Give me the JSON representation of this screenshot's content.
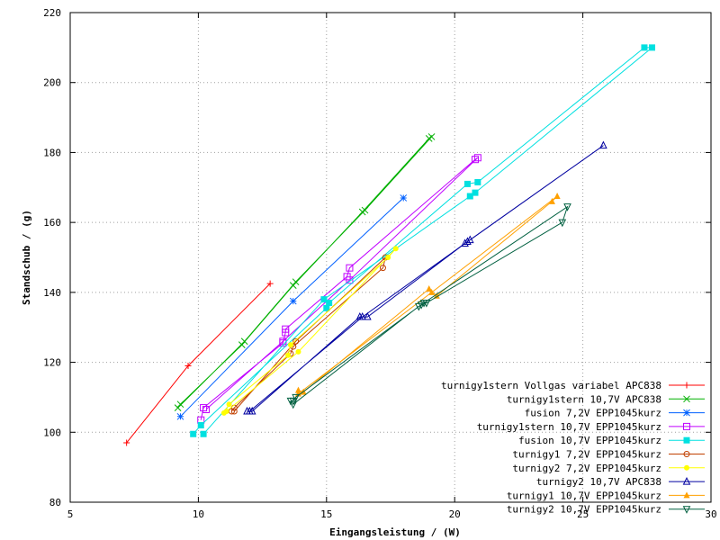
{
  "chart_data": {
    "type": "line",
    "xlabel": "Eingangsleistung / (W)",
    "ylabel": "Standschub / (g)",
    "xlim": [
      5,
      30
    ],
    "ylim": [
      80,
      220
    ],
    "xticks": [
      5,
      10,
      15,
      20,
      25,
      30
    ],
    "yticks": [
      80,
      100,
      120,
      140,
      160,
      180,
      200,
      220
    ],
    "grid": true,
    "legend_position": "bottom-right",
    "series": [
      {
        "name": "turnigy1stern Vollgas variabel APC838",
        "color": "#ff0000",
        "marker": "plus",
        "points": [
          [
            7.2,
            97
          ],
          [
            9.6,
            119
          ],
          [
            12.8,
            142.5
          ]
        ]
      },
      {
        "name": "turnigy1stern 10,7V APC838",
        "color": "#00b000",
        "marker": "cross",
        "points": [
          [
            9.2,
            107
          ],
          [
            11.8,
            126
          ],
          [
            13.8,
            143
          ],
          [
            16.5,
            163.5
          ],
          [
            19.1,
            184.5
          ],
          [
            19.0,
            184
          ],
          [
            16.4,
            163
          ],
          [
            13.7,
            142
          ],
          [
            11.7,
            125
          ],
          [
            9.3,
            108
          ]
        ]
      },
      {
        "name": "fusion 7,2V EPP1045kurz",
        "color": "#0060ff",
        "marker": "asterisk",
        "points": [
          [
            9.3,
            104.5
          ],
          [
            13.7,
            137.5
          ],
          [
            18.0,
            167
          ]
        ]
      },
      {
        "name": "turnigy1stern 10,7V EPP1045kurz",
        "color": "#c000ff",
        "marker": "square-open",
        "points": [
          [
            10.1,
            103.5
          ],
          [
            10.2,
            107
          ],
          [
            13.3,
            125.5
          ],
          [
            13.4,
            128.5
          ],
          [
            13.4,
            129.5
          ],
          [
            15.8,
            144.5
          ],
          [
            15.9,
            147
          ],
          [
            20.8,
            178
          ],
          [
            20.9,
            178.5
          ],
          [
            15.9,
            143.5
          ],
          [
            13.3,
            126
          ],
          [
            10.3,
            106.5
          ]
        ]
      },
      {
        "name": "fusion 10,7V EPP1045kurz",
        "color": "#00e0e0",
        "marker": "square-filled",
        "points": [
          [
            9.8,
            99.5
          ],
          [
            10.1,
            102
          ],
          [
            15.0,
            135.5
          ],
          [
            15.1,
            137
          ],
          [
            20.5,
            171
          ],
          [
            20.9,
            171.5
          ],
          [
            27.4,
            210
          ],
          [
            27.7,
            210
          ],
          [
            20.8,
            168.5
          ],
          [
            20.6,
            167.5
          ],
          [
            14.9,
            138
          ],
          [
            10.2,
            99.5
          ]
        ]
      },
      {
        "name": "turnigy1 7,2V EPP1045kurz",
        "color": "#c04000",
        "marker": "circle-open",
        "points": [
          [
            11.3,
            106
          ],
          [
            11.4,
            107
          ],
          [
            13.6,
            122.5
          ],
          [
            13.7,
            124.5
          ],
          [
            17.2,
            147
          ],
          [
            17.3,
            150
          ],
          [
            13.8,
            126
          ],
          [
            11.4,
            106
          ]
        ]
      },
      {
        "name": "turnigy2 7,2V EPP1045kurz",
        "color": "#ffff00",
        "marker": "circle-filled",
        "points": [
          [
            11.0,
            105.5
          ],
          [
            11.2,
            108
          ],
          [
            13.5,
            122
          ],
          [
            13.6,
            125
          ],
          [
            17.4,
            150
          ],
          [
            17.7,
            152.5
          ],
          [
            13.9,
            123
          ],
          [
            11.1,
            106
          ]
        ]
      },
      {
        "name": "turnigy2 10,7V APC838",
        "color": "#0000a0",
        "marker": "triangle-open",
        "points": [
          [
            11.9,
            106
          ],
          [
            12.1,
            106
          ],
          [
            16.3,
            133
          ],
          [
            16.6,
            133
          ],
          [
            20.4,
            154
          ],
          [
            20.6,
            155
          ],
          [
            25.8,
            182
          ],
          [
            20.5,
            154.5
          ],
          [
            16.4,
            133
          ],
          [
            12.0,
            106
          ]
        ]
      },
      {
        "name": "turnigy1 10,7V EPP1045kurz",
        "color": "#ffa000",
        "marker": "triangle-filled",
        "points": [
          [
            13.9,
            112
          ],
          [
            14.1,
            111.5
          ],
          [
            19.0,
            141
          ],
          [
            19.3,
            139
          ],
          [
            23.8,
            166
          ],
          [
            24.0,
            167.5
          ],
          [
            19.1,
            140
          ],
          [
            13.9,
            111
          ]
        ]
      },
      {
        "name": "turnigy2 10,7V EPP1045kurz",
        "color": "#006040",
        "marker": "triangle-down",
        "points": [
          [
            13.6,
            109
          ],
          [
            13.7,
            108
          ],
          [
            18.6,
            136
          ],
          [
            18.9,
            137
          ],
          [
            24.2,
            160
          ],
          [
            24.4,
            164.5
          ],
          [
            18.8,
            137
          ],
          [
            18.7,
            136.5
          ],
          [
            13.8,
            110
          ],
          [
            13.7,
            109
          ]
        ]
      }
    ]
  }
}
